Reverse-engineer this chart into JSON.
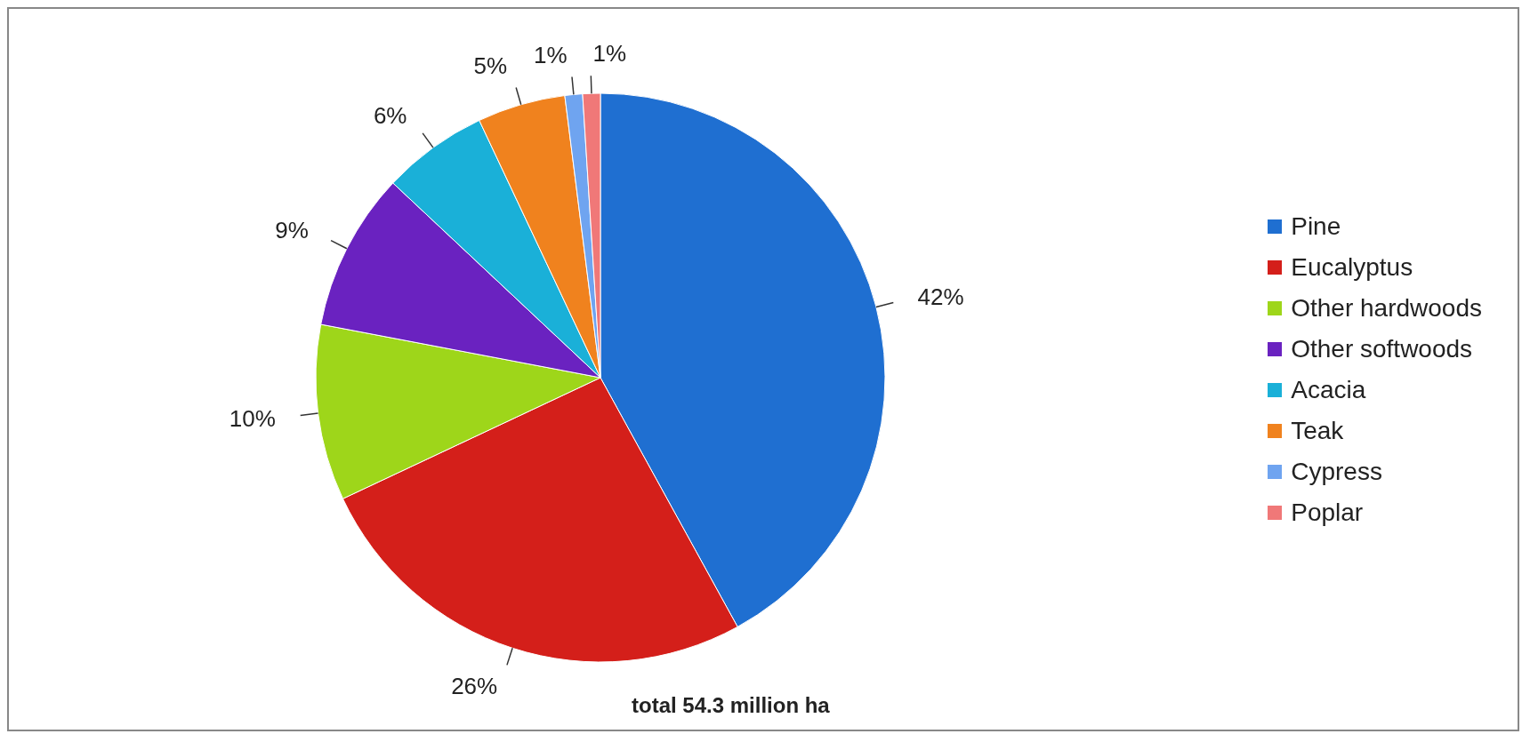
{
  "chart_data": {
    "type": "pie",
    "categories": [
      "Pine",
      "Eucalyptus",
      "Other hardwoods",
      "Other softwoods",
      "Acacia",
      "Teak",
      "Cypress",
      "Poplar"
    ],
    "values": [
      42,
      26,
      10,
      9,
      6,
      5,
      1,
      1
    ],
    "colors": [
      "#1f6fd1",
      "#d41f1a",
      "#9ed61a",
      "#6a22c0",
      "#1ab0d8",
      "#f0821e",
      "#6fa4f0",
      "#f07878"
    ],
    "value_labels": [
      "42%",
      "26%",
      "10%",
      "9%",
      "6%",
      "5%",
      "1%",
      "1%"
    ],
    "legend": "right",
    "annotations": [
      "total 54.3 million ha"
    ]
  }
}
